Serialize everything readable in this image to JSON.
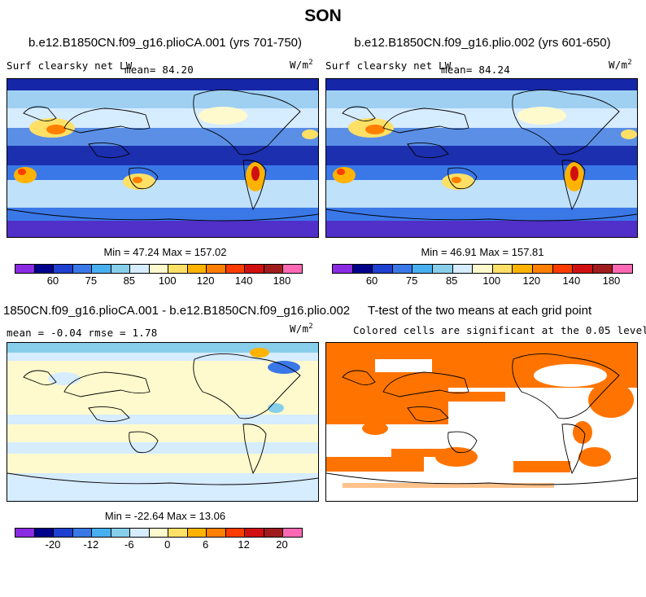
{
  "figure": {
    "title": "SON",
    "panels": [
      {
        "title": "b.e12.B1850CN.f09_g16.plioCA.001 (yrs 701-750)",
        "left_label": "Surf clearsky net LW",
        "mean_label": "mean=  84.20",
        "units": "W/m",
        "units_sup": "2",
        "minmax": "Min =  47.24 Max = 157.02"
      },
      {
        "title": "b.e12.B1850CN.f09_g16.plio.002 (yrs 601-650)",
        "left_label": "Surf clearsky net LW",
        "mean_label": "mean=  84.24",
        "units": "W/m",
        "units_sup": "2",
        "minmax": "Min =  46.91 Max = 157.81"
      },
      {
        "title": "1850CN.f09_g16.plioCA.001 - b.e12.B1850CN.f09_g16.plio.002",
        "left_label": "mean =  -0.04    rmse =   1.78",
        "units": "W/m",
        "units_sup": "2",
        "minmax": "Min = -22.64 Max =  13.06"
      },
      {
        "title": "T-test of the two means at each grid point",
        "left_label": "Colored cells are significant at the 0.05 level"
      }
    ],
    "colorbar_abs": {
      "ticks": [
        "60",
        "75",
        "85",
        "100",
        "120",
        "140",
        "180"
      ],
      "colors": [
        "#8a2be2",
        "#00008b",
        "#1e3fcf",
        "#3a78e8",
        "#48b0f0",
        "#87ceeb",
        "#d6ecff",
        "#fffacd",
        "#ffe066",
        "#ffb300",
        "#ff7f00",
        "#ff3c00",
        "#d01010",
        "#a01c1c",
        "#ff69b4"
      ]
    },
    "colorbar_diff": {
      "ticks": [
        "-20",
        "-12",
        "-6",
        "0",
        "6",
        "12",
        "20"
      ],
      "colors": [
        "#8a2be2",
        "#00008b",
        "#1e3fcf",
        "#3a78e8",
        "#48b0f0",
        "#87ceeb",
        "#d6ecff",
        "#fffacd",
        "#ffe066",
        "#ffb300",
        "#ff7f00",
        "#ff3c00",
        "#d01010",
        "#a01c1c",
        "#ff69b4"
      ]
    }
  },
  "chart_data": [
    {
      "type": "heatmap",
      "title": "b.e12.B1850CN.f09_g16.plioCA.001 (yrs 701-750)",
      "variable": "Surf clearsky net LW",
      "units": "W/m^2",
      "mean": 84.2,
      "min": 47.24,
      "max": 157.02,
      "colorbar_ticks": [
        60,
        75,
        85,
        100,
        120,
        140,
        180
      ]
    },
    {
      "type": "heatmap",
      "title": "b.e12.B1850CN.f09_g16.plio.002 (yrs 601-650)",
      "variable": "Surf clearsky net LW",
      "units": "W/m^2",
      "mean": 84.24,
      "min": 46.91,
      "max": 157.81,
      "colorbar_ticks": [
        60,
        75,
        85,
        100,
        120,
        140,
        180
      ]
    },
    {
      "type": "heatmap",
      "title": "1850CN.f09_g16.plioCA.001 - b.e12.B1850CN.f09_g16.plio.002",
      "units": "W/m^2",
      "mean": -0.04,
      "rmse": 1.78,
      "min": -22.64,
      "max": 13.06,
      "colorbar_ticks": [
        -20,
        -12,
        -6,
        0,
        6,
        12,
        20
      ]
    },
    {
      "type": "heatmap",
      "title": "T-test of the two means at each grid point",
      "note": "Colored cells are significant at the 0.05 level",
      "significance_level": 0.05
    }
  ]
}
